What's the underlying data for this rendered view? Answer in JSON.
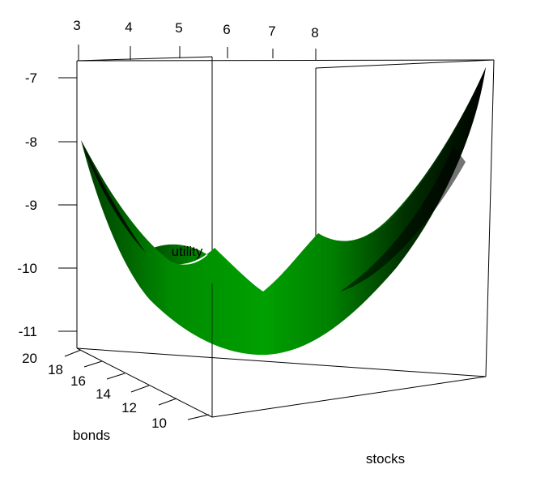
{
  "chart_data": {
    "type": "surface",
    "z_label": "utility",
    "x_label": "stocks",
    "y_label": "bonds",
    "top_axis_ticks": [
      "3",
      "4",
      "5",
      "6",
      "7",
      "8"
    ],
    "z_ticks": [
      "-7",
      "-8",
      "-9",
      "-10",
      "-11"
    ],
    "y_ticks": [
      "20",
      "18",
      "16",
      "14",
      "12",
      "10"
    ],
    "surface_color": "#009a00",
    "shade_color": "#000000",
    "surface_profile": {
      "note_units": "utility",
      "front_edge": [
        -8.0,
        -10.9,
        -7.2
      ],
      "back_edge": [
        -9.6,
        -10.3,
        -9.5
      ]
    }
  }
}
